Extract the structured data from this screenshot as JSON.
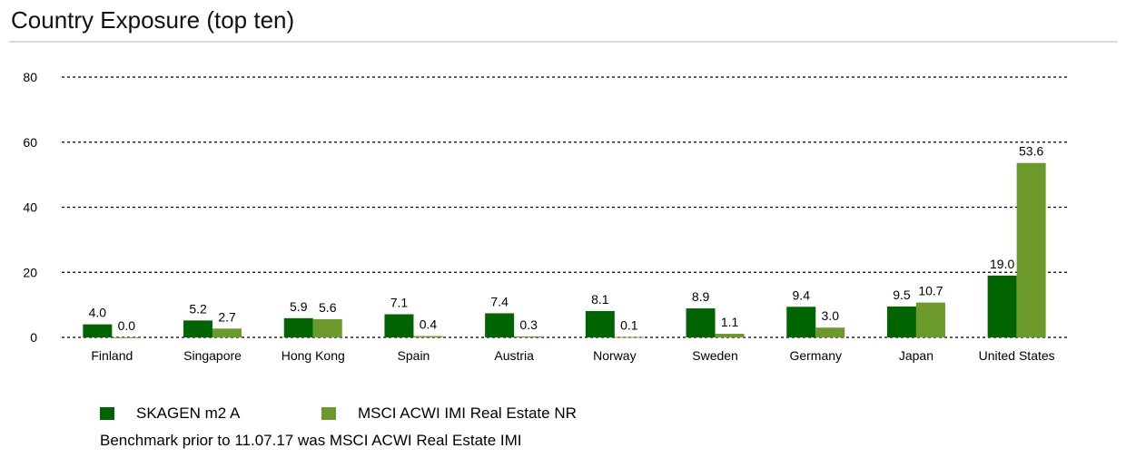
{
  "title": "Country Exposure (top ten)",
  "footnote": "Benchmark prior to 11.07.17 was MSCI ACWI Real Estate IMI",
  "colors": {
    "series1": "#006400",
    "series2": "#6b9a2a",
    "grid": "#000000"
  },
  "chart_data": {
    "type": "bar",
    "categories": [
      "Finland",
      "Singapore",
      "Hong Kong",
      "Spain",
      "Austria",
      "Norway",
      "Sweden",
      "Germany",
      "Japan",
      "United States"
    ],
    "series": [
      {
        "name": "SKAGEN m2 A",
        "values": [
          4.0,
          5.2,
          5.9,
          7.1,
          7.4,
          8.1,
          8.9,
          9.4,
          9.5,
          19.0
        ],
        "labels": [
          "4.0",
          "5.2",
          "5.9",
          "7.1",
          "7.4",
          "8.1",
          "8.9",
          "9.4",
          "9.5",
          "19.0"
        ]
      },
      {
        "name": "MSCI ACWI IMI Real Estate NR",
        "values": [
          0.0,
          2.7,
          5.6,
          0.4,
          0.3,
          0.1,
          1.1,
          3.0,
          10.7,
          53.6
        ],
        "labels": [
          "0.0",
          "2.7",
          "5.6",
          "0.4",
          "0.3",
          "0.1",
          "1.1",
          "3.0",
          "10.7",
          "53.6"
        ]
      }
    ],
    "yticks": [
      "0",
      "20",
      "40",
      "60",
      "80"
    ],
    "ylim": [
      0,
      80
    ],
    "grid": "dotted horizontal",
    "legend_position": "bottom-left"
  }
}
